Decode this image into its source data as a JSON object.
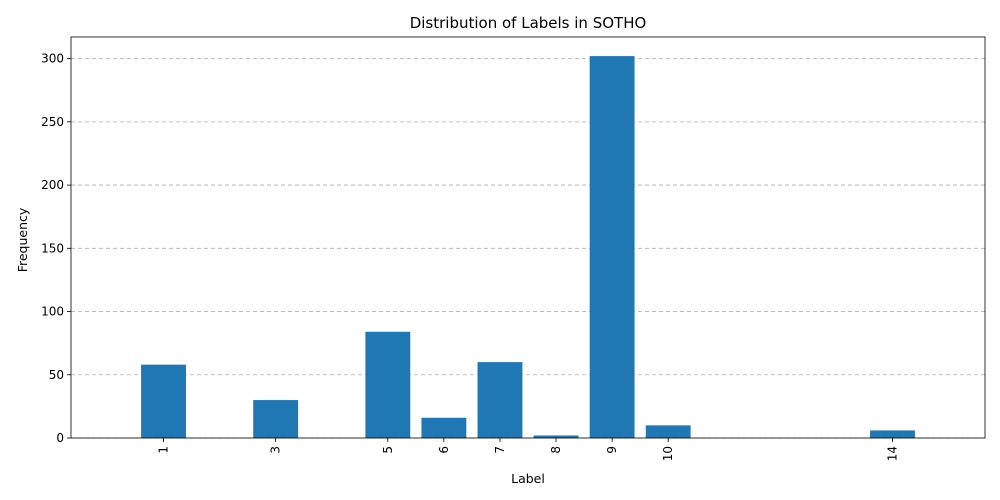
{
  "chart_data": {
    "type": "bar",
    "title": "Distribution of Labels in SOTHO",
    "xlabel": "Label",
    "ylabel": "Frequency",
    "x": [
      1,
      3,
      5,
      6,
      7,
      8,
      9,
      10,
      14
    ],
    "categories": [
      "1",
      "3",
      "5",
      "6",
      "7",
      "8",
      "9",
      "10",
      "14"
    ],
    "values": [
      58,
      30,
      84,
      16,
      60,
      2,
      302,
      10,
      6
    ],
    "xlim": [
      -0.65,
      15.65
    ],
    "ylim": [
      0,
      317.1
    ],
    "yticks": [
      0,
      50,
      100,
      150,
      200,
      250,
      300
    ],
    "bar_width": 0.8,
    "bar_color": "#1f77b4",
    "grid": "y-dashed",
    "xtick_rotation": 90
  }
}
